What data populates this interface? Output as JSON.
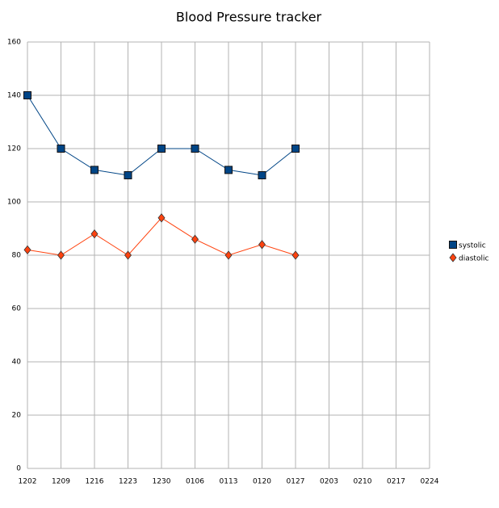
{
  "chart_data": {
    "type": "line",
    "title": "Blood Pressure tracker",
    "categories": [
      "1202",
      "1209",
      "1216",
      "1223",
      "1230",
      "0106",
      "0113",
      "0120",
      "0127",
      "0203",
      "0210",
      "0217",
      "0224"
    ],
    "series": [
      {
        "name": "systolic",
        "color": "#004586",
        "marker": "square",
        "values": [
          140,
          120,
          112,
          110,
          120,
          120,
          112,
          110,
          120,
          null,
          null,
          null,
          null
        ]
      },
      {
        "name": "diastolic",
        "color": "#ff420e",
        "marker": "diamond",
        "values": [
          82,
          80,
          88,
          80,
          94,
          86,
          80,
          84,
          80,
          null,
          null,
          null,
          null
        ]
      }
    ],
    "ylim": [
      0,
      160
    ],
    "yticks": [
      0,
      20,
      40,
      60,
      80,
      100,
      120,
      140,
      160
    ],
    "grid": true,
    "legend": "right"
  }
}
